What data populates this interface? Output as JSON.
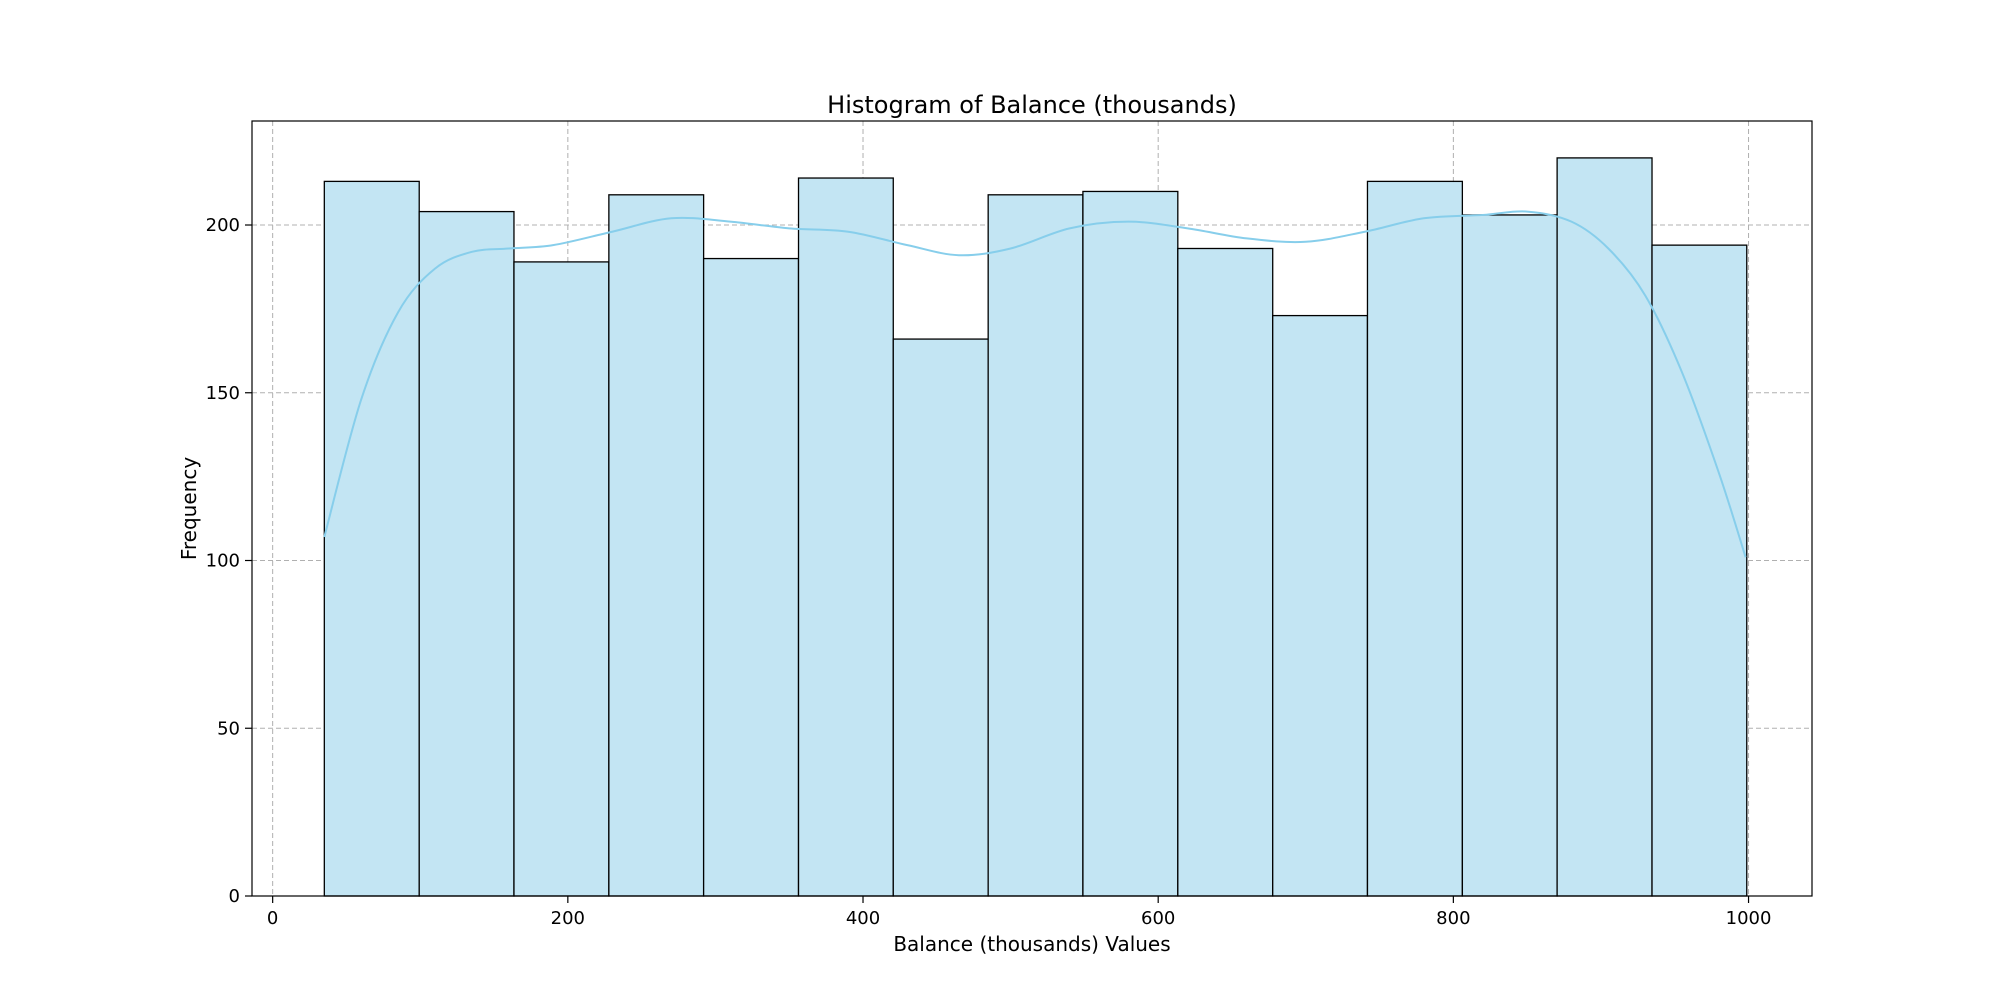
{
  "chart_data": {
    "type": "bar",
    "title": "Histogram of Balance (thousands)",
    "xlabel": "Balance (thousands) Values",
    "ylabel": "Frequency",
    "xlim": [
      -14,
      1043
    ],
    "ylim": [
      0,
      231
    ],
    "xticks": [
      0,
      200,
      400,
      600,
      800,
      1000
    ],
    "yticks": [
      0,
      50,
      100,
      150,
      200
    ],
    "grid": true,
    "bin_edges": [
      35,
      99.3,
      163.5,
      227.8,
      292.0,
      356.3,
      420.5,
      484.8,
      549.0,
      613.3,
      677.6,
      741.8,
      806.1,
      870.3,
      934.6,
      998.8
    ],
    "values": [
      213,
      204,
      189,
      209,
      190,
      214,
      166,
      209,
      210,
      193,
      173,
      213,
      203,
      220,
      194
    ],
    "kde": {
      "x": [
        35,
        60,
        85,
        110,
        135,
        160,
        190,
        230,
        270,
        310,
        350,
        390,
        430,
        465,
        500,
        540,
        580,
        620,
        660,
        700,
        740,
        780,
        820,
        850,
        880,
        905,
        930,
        955,
        980,
        998
      ],
      "y": [
        107,
        148,
        174,
        187,
        192,
        193,
        194,
        198,
        202,
        201,
        199,
        198,
        194,
        191,
        193,
        199,
        201,
        199,
        196,
        195,
        198,
        202,
        203,
        204,
        201,
        193,
        179,
        156,
        126,
        101
      ]
    },
    "colors": {
      "bar_fill": "#c3e5f3",
      "bar_edge": "#000000",
      "kde_line": "#87ceeb",
      "grid": "#b0b0b0",
      "axes": "#000000"
    }
  }
}
